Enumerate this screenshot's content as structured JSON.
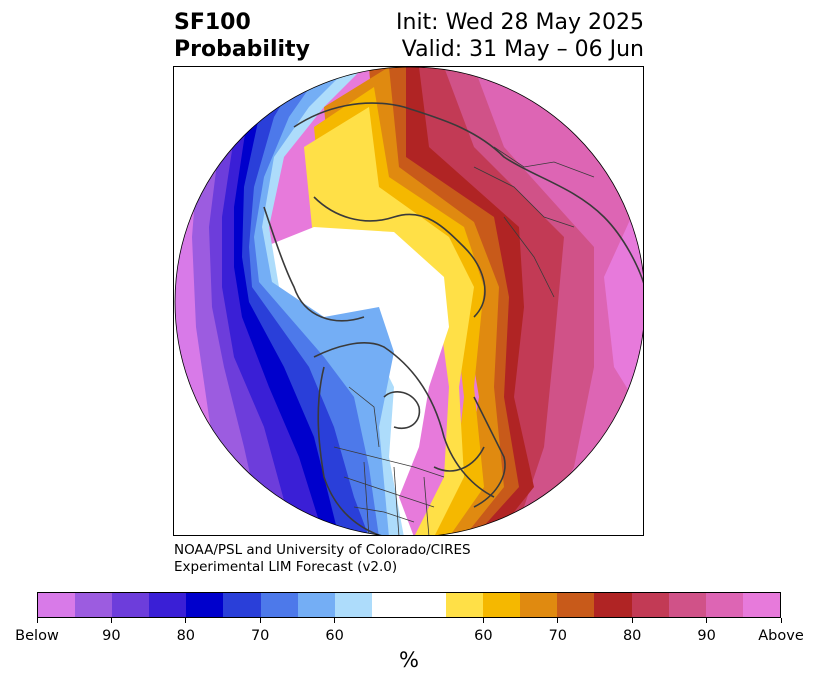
{
  "header": {
    "title_line1": "SF100",
    "title_line2": "Probability",
    "init_label": "Init: Wed 28 May 2025",
    "valid_label": "Valid: 31 May – 06 Jun"
  },
  "credit": {
    "line1": "NOAA/PSL and University of Colorado/CIRES",
    "line2": "Experimental LIM Forecast (v2.0)"
  },
  "map": {
    "projection": "north-polar-stereographic",
    "features": [
      "coastlines",
      "country-borders",
      "us-state-borders",
      "canada-province-borders",
      "north-pole-marker"
    ]
  },
  "colorbar": {
    "colors": [
      "#d87ae8",
      "#9c5ce0",
      "#6d3ddb",
      "#3a1fd6",
      "#0000cc",
      "#2a3fd9",
      "#4d79ea",
      "#74aef5",
      "#addcfb",
      "#ffffff",
      "#ffe047",
      "#f5b800",
      "#e08a10",
      "#c85a1a",
      "#b02424",
      "#c23a55",
      "#d05288",
      "#dd65b4",
      "#e77adb"
    ],
    "tick_labels": [
      "Below",
      "90",
      "80",
      "70",
      "60",
      "60",
      "70",
      "80",
      "90",
      "Above"
    ],
    "unit_label": "%"
  }
}
